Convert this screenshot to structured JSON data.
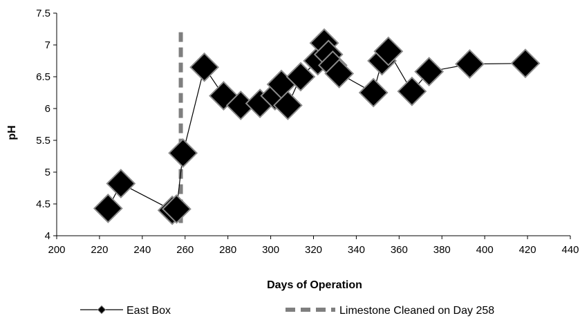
{
  "chart_data": {
    "type": "line",
    "xlabel": "Days of Operation",
    "ylabel": "pH",
    "xlim": [
      200,
      440
    ],
    "ylim": [
      4,
      7.5
    ],
    "x_ticks": [
      "200",
      "220",
      "240",
      "260",
      "280",
      "300",
      "320",
      "340",
      "360",
      "380",
      "400",
      "420",
      "440"
    ],
    "y_ticks": [
      "4",
      "4.5",
      "5",
      "5.5",
      "6",
      "6.5",
      "7",
      "7.5"
    ],
    "grid": false,
    "legend_position": "bottom",
    "series": [
      {
        "name": "East Box",
        "marker": "diamond",
        "color": "#000000",
        "x": [
          224,
          230,
          254,
          256,
          259,
          269,
          278,
          286,
          295,
          302,
          305,
          308,
          314,
          322,
          325,
          327,
          329,
          332,
          348,
          352,
          355,
          366,
          374,
          393,
          419
        ],
        "y": [
          4.43,
          4.82,
          4.4,
          4.42,
          5.3,
          6.65,
          6.2,
          6.05,
          6.08,
          6.2,
          6.38,
          6.05,
          6.5,
          6.75,
          7.03,
          6.85,
          6.68,
          6.55,
          6.25,
          6.75,
          6.9,
          6.27,
          6.58,
          6.7,
          6.71
        ]
      },
      {
        "name": "Limestone Cleaned on Day 258",
        "style": "dashed",
        "color": "#7f7f7f",
        "x": [
          258,
          258
        ],
        "y": [
          4.2,
          7.2
        ]
      }
    ]
  }
}
